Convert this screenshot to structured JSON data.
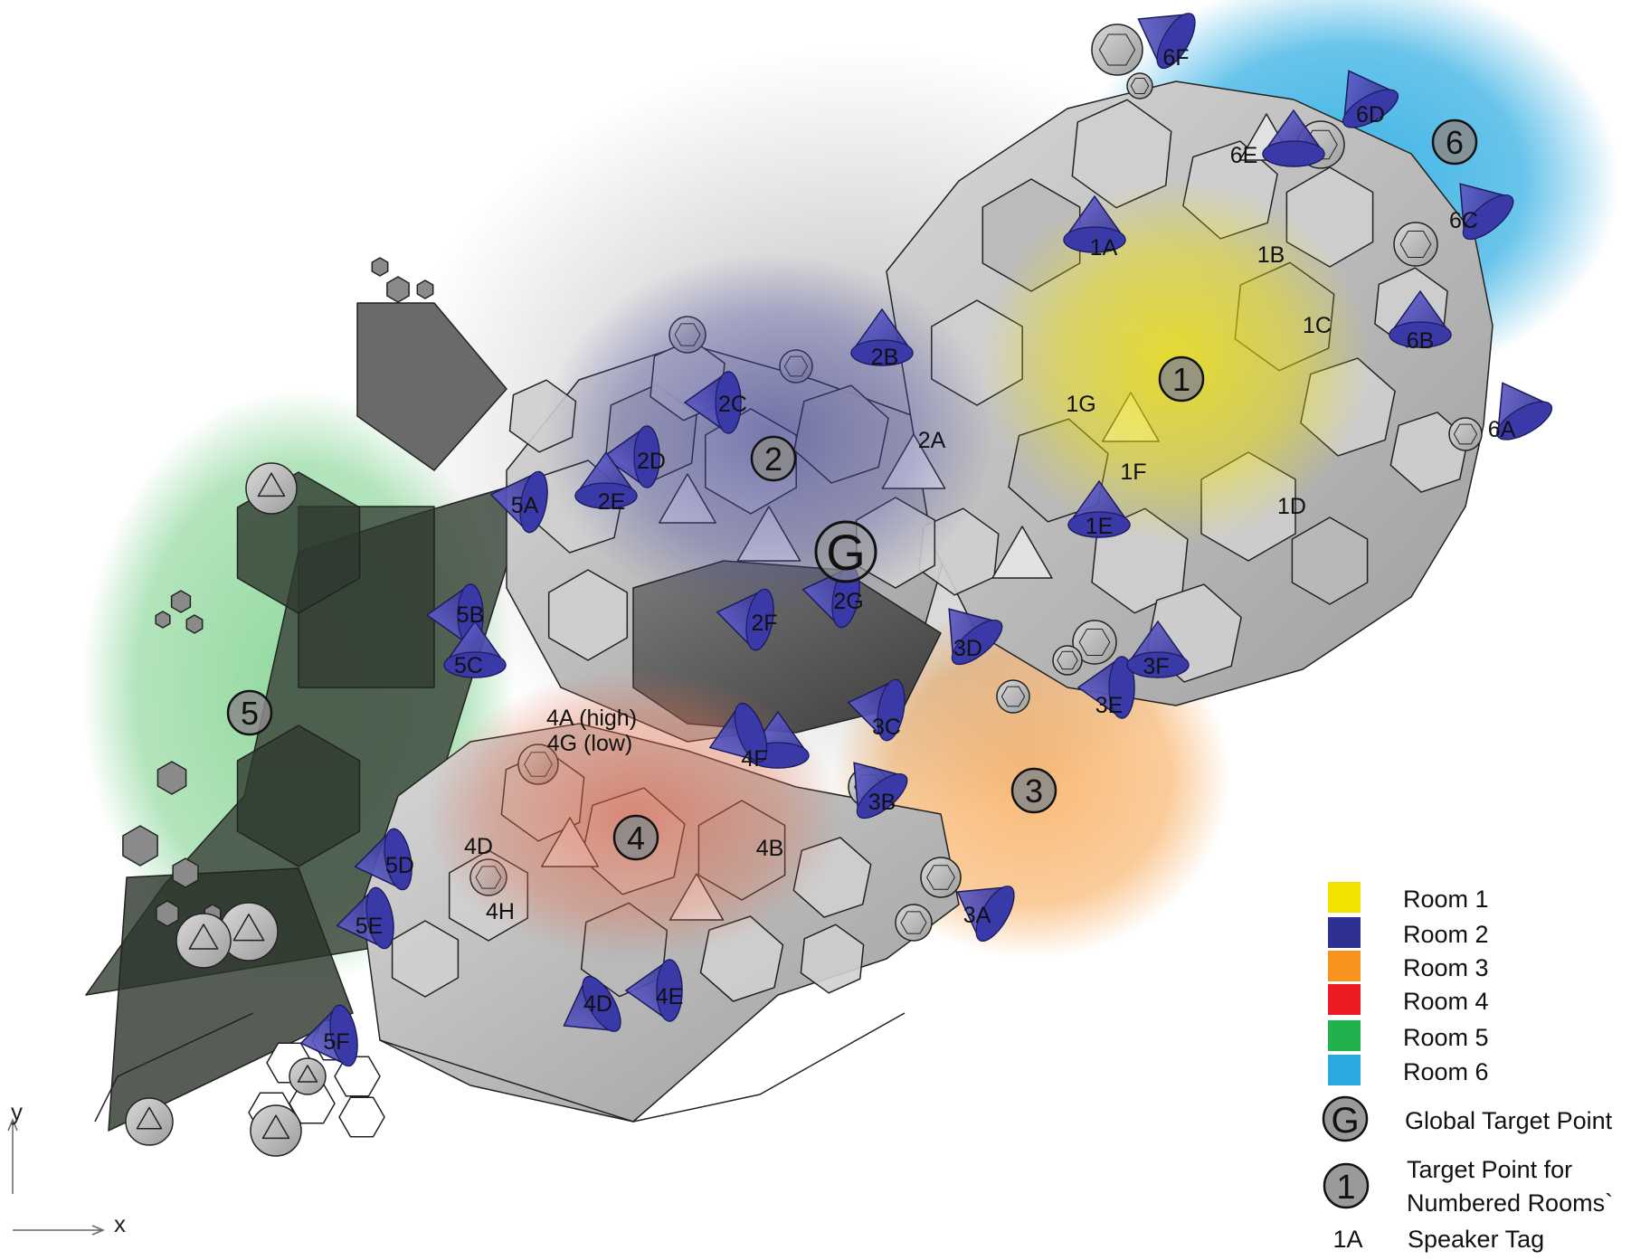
{
  "rooms": [
    {
      "id": "1",
      "color": "#f2e400"
    },
    {
      "id": "2",
      "color": "#2e3192"
    },
    {
      "id": "3",
      "color": "#f7941d"
    },
    {
      "id": "4",
      "color": "#ed1c24"
    },
    {
      "id": "5",
      "color": "#22b14c"
    },
    {
      "id": "6",
      "color": "#29abe2"
    }
  ],
  "global_target": {
    "symbol": "G"
  },
  "speakers": [
    {
      "tag": "6F"
    },
    {
      "tag": "6D"
    },
    {
      "tag": "6E"
    },
    {
      "tag": "6C"
    },
    {
      "tag": "6B"
    },
    {
      "tag": "6A"
    },
    {
      "tag": "1A"
    },
    {
      "tag": "1B"
    },
    {
      "tag": "1C"
    },
    {
      "tag": "1D"
    },
    {
      "tag": "1E"
    },
    {
      "tag": "1F"
    },
    {
      "tag": "1G"
    },
    {
      "tag": "2A"
    },
    {
      "tag": "2B"
    },
    {
      "tag": "2C"
    },
    {
      "tag": "2D"
    },
    {
      "tag": "2E"
    },
    {
      "tag": "2F"
    },
    {
      "tag": "2G"
    },
    {
      "tag": "3A"
    },
    {
      "tag": "3B"
    },
    {
      "tag": "3D"
    },
    {
      "tag": "3E"
    },
    {
      "tag": "3F"
    },
    {
      "tag": "4A (high)"
    },
    {
      "tag": "4G (low)"
    },
    {
      "tag": "4B"
    },
    {
      "tag": "4D"
    },
    {
      "tag": "4D"
    },
    {
      "tag": "4E"
    },
    {
      "tag": "4F"
    },
    {
      "tag": "4H"
    },
    {
      "tag": "5A"
    },
    {
      "tag": "5B"
    },
    {
      "tag": "5C"
    },
    {
      "tag": "5D"
    },
    {
      "tag": "5E"
    },
    {
      "tag": "5F"
    },
    {
      "tag": "3C"
    }
  ],
  "axes": {
    "x_label": "x",
    "y_label": "y"
  },
  "legend": {
    "rooms": [
      "Room 1",
      "Room 2",
      "Room 3",
      "Room 4",
      "Room 5",
      "Room 6"
    ],
    "global_target_label": "Global Target Point",
    "global_target_symbol": "G",
    "room_target_symbol": "1",
    "room_target_label_1": "Target Point for",
    "room_target_label_2": "Numbered Rooms`",
    "speaker_tag_example": "1A",
    "speaker_tag_label": "Speaker Tag"
  }
}
